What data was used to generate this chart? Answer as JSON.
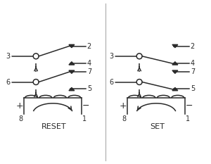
{
  "line_color": "#2a2a2a",
  "text_color": "#2a2a2a",
  "title_reset": "RESET",
  "title_set": "SET",
  "figsize": [
    3.0,
    2.33
  ],
  "dpi": 100
}
